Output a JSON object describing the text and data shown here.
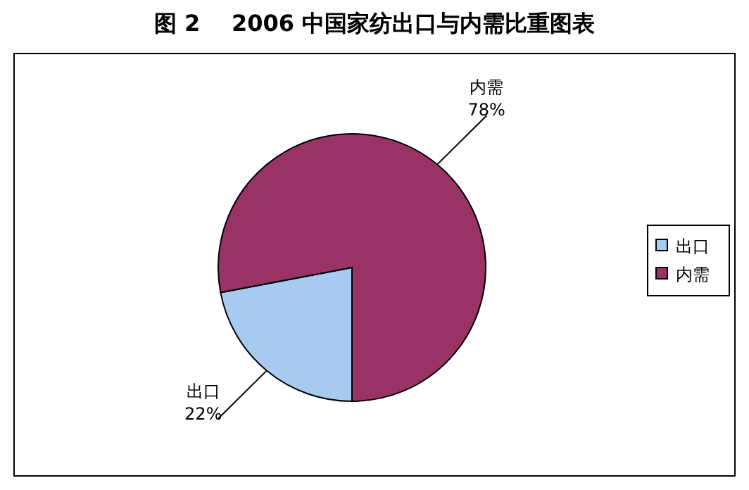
{
  "chart_data": {
    "type": "pie",
    "title": "图 2    2006 中国家纺出口与内需比重图表",
    "categories": [
      "出口",
      "内需"
    ],
    "values": [
      22,
      78
    ],
    "colors": [
      "#a6caf0",
      "#993366"
    ],
    "value_labels": [
      "22%",
      "78%"
    ],
    "legend": "right"
  }
}
